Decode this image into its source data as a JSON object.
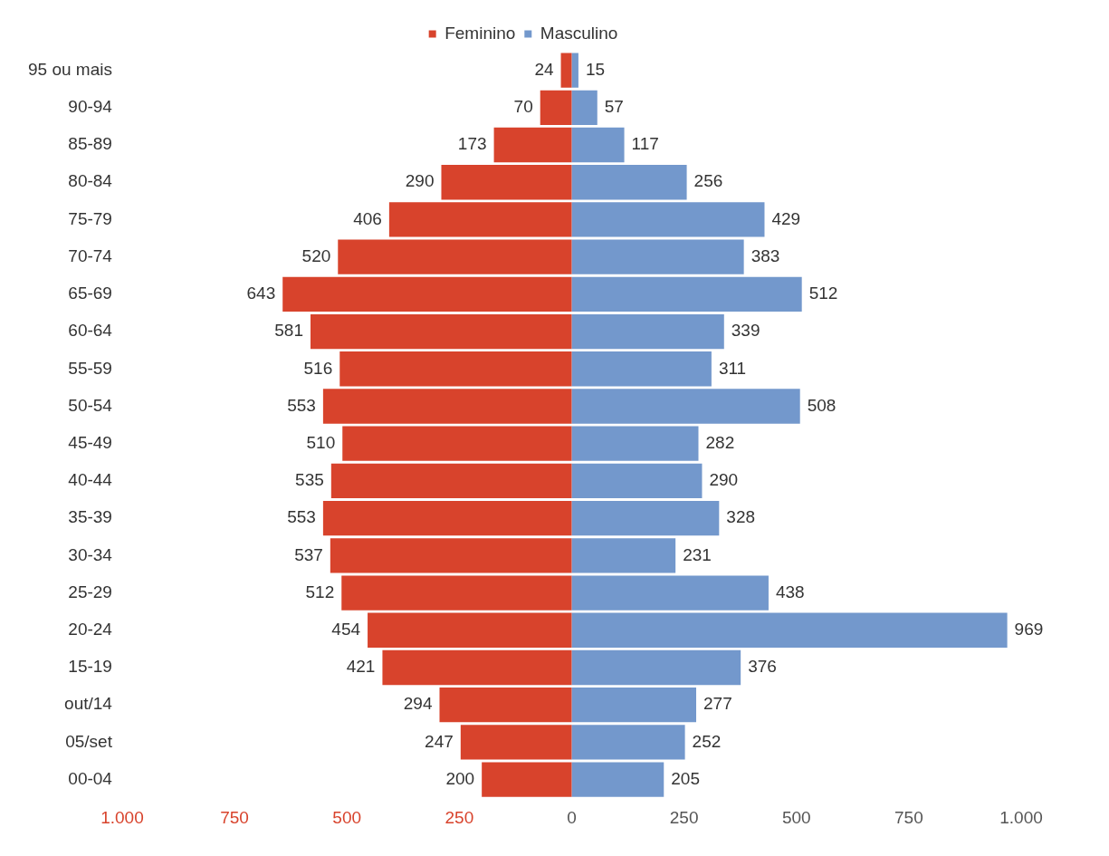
{
  "chart_data": {
    "type": "bar",
    "orientation": "horizontal",
    "categories": [
      "95 ou mais",
      "90-94",
      "85-89",
      "80-84",
      "75-79",
      "70-74",
      "65-69",
      "60-64",
      "55-59",
      "50-54",
      "45-49",
      "40-44",
      "35-39",
      "30-34",
      "25-29",
      "20-24",
      "15-19",
      "out/14",
      "05/set",
      "00-04"
    ],
    "series": [
      {
        "name": "Feminino",
        "color": "#d8432c",
        "values": [
          24,
          70,
          173,
          290,
          406,
          520,
          643,
          581,
          516,
          553,
          510,
          535,
          553,
          537,
          512,
          454,
          421,
          294,
          247,
          200
        ],
        "base": [
          -24,
          -70,
          -173,
          -290,
          -406,
          -520,
          -643,
          -581,
          -516,
          -553,
          -510,
          -535,
          -553,
          -537,
          -512,
          -454,
          -421,
          -294,
          -247,
          -200
        ],
        "value_labels": [
          "24",
          "70",
          "173",
          "290",
          "406",
          "520",
          "643",
          "581",
          "516",
          "553",
          "510",
          "535",
          "553",
          "537",
          "512",
          "454",
          "421",
          "294",
          "247",
          "200"
        ]
      },
      {
        "name": "Masculino",
        "color": "#7398cc",
        "values": [
          15,
          57,
          117,
          256,
          429,
          383,
          512,
          339,
          311,
          508,
          282,
          290,
          328,
          231,
          438,
          969,
          376,
          277,
          252,
          205
        ],
        "value_labels": [
          "15",
          "57",
          "117",
          "256",
          "429",
          "383",
          "512",
          "339",
          "311",
          "508",
          "282",
          "290",
          "328",
          "231",
          "438",
          "969",
          "376",
          "277",
          "252",
          "205"
        ]
      }
    ],
    "xlim": [
      -1000,
      1000
    ],
    "xticks": [
      {
        "value": -1000,
        "label": "1.000"
      },
      {
        "value": -750,
        "label": "750"
      },
      {
        "value": -500,
        "label": "500"
      },
      {
        "value": -250,
        "label": "250"
      },
      0,
      250,
      500,
      750,
      {
        "value": 1000,
        "label": "1.000"
      }
    ],
    "legend": "top",
    "grid": false
  }
}
